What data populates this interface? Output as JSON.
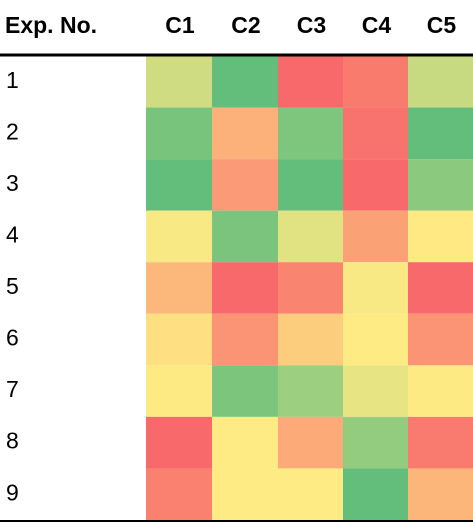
{
  "table": {
    "header": [
      "Exp. No.",
      "C1",
      "C2",
      "C3",
      "C4",
      "C5"
    ],
    "rows": [
      {
        "label": "1",
        "colors": [
          "#cfdc82",
          "#63be7b",
          "#f8696b",
          "#f97b6e",
          "#c8da81"
        ]
      },
      {
        "label": "2",
        "colors": [
          "#78c47d",
          "#fcb07a",
          "#7ec57d",
          "#f8736d",
          "#63be7b"
        ]
      },
      {
        "label": "3",
        "colors": [
          "#64be7b",
          "#fb9a76",
          "#63be7b",
          "#f8696b",
          "#8ac97e"
        ]
      },
      {
        "label": "4",
        "colors": [
          "#f8e984",
          "#7ac47d",
          "#e1e383",
          "#fba176",
          "#fee983"
        ]
      },
      {
        "label": "5",
        "colors": [
          "#fcb77a",
          "#f8696b",
          "#f98570",
          "#f9e984",
          "#f8696b"
        ]
      },
      {
        "label": "6",
        "colors": [
          "#fee082",
          "#fb9474",
          "#fdcd7e",
          "#feeb84",
          "#fb9474"
        ]
      },
      {
        "label": "7",
        "colors": [
          "#feea83",
          "#7cc57d",
          "#9ccf7f",
          "#e6e483",
          "#feea83"
        ]
      },
      {
        "label": "8",
        "colors": [
          "#f8696b",
          "#feeb84",
          "#fcab78",
          "#93cc7e",
          "#f97a6e"
        ]
      },
      {
        "label": "9",
        "colors": [
          "#fa8070",
          "#feeb84",
          "#feeb84",
          "#63be7b",
          "#fcb67a"
        ]
      }
    ]
  }
}
